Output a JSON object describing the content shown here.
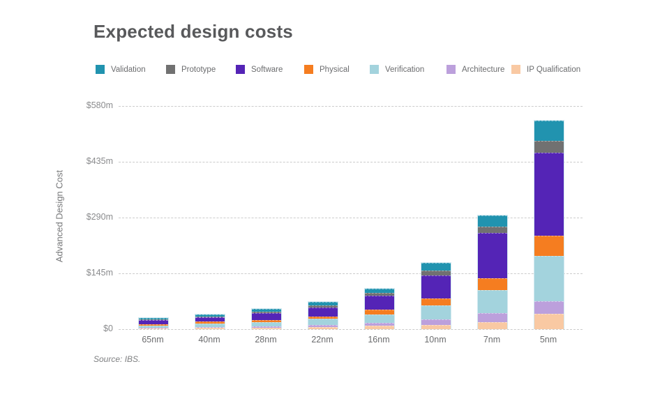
{
  "title": "Expected design costs",
  "source_note": "Source: IBS.",
  "y_axis": {
    "title": "Advanced Design Cost",
    "tick_labels": [
      "$580m",
      "$435m",
      "$290m",
      "$145m",
      "$0"
    ],
    "tick_values": [
      580,
      435,
      290,
      145,
      0
    ]
  },
  "legend": {
    "position": "top",
    "items": [
      {
        "label": "Validation",
        "color": "#2193af"
      },
      {
        "label": "Prototype",
        "color": "#717171"
      },
      {
        "label": "Software",
        "color": "#5424b6"
      },
      {
        "label": "Physical",
        "color": "#f57d20"
      },
      {
        "label": "Verification",
        "color": "#a3d3dd"
      },
      {
        "label": "Architecture",
        "color": "#bca0dc"
      },
      {
        "label": "IP Qualification",
        "color": "#f9c9a3"
      }
    ]
  },
  "chart_data": {
    "type": "bar",
    "stacked": true,
    "title": "Expected design costs",
    "ylabel": "Advanced Design Cost",
    "unit": "$m",
    "ylim": [
      0,
      580
    ],
    "yticks": [
      0,
      145,
      290,
      435,
      580
    ],
    "grid": "horizontal-dashed",
    "legend_position": "top",
    "categories": [
      "65nm",
      "40nm",
      "28nm",
      "22nm",
      "16nm",
      "10nm",
      "7nm",
      "5nm"
    ],
    "series": [
      {
        "name": "IP Qualification",
        "color": "#f9c9a3",
        "values": [
          2,
          3,
          3,
          6,
          10,
          11,
          18,
          40
        ]
      },
      {
        "name": "Architecture",
        "color": "#bca0dc",
        "values": [
          2,
          3,
          4,
          5,
          7,
          15,
          23,
          32
        ]
      },
      {
        "name": "Verification",
        "color": "#a3d3dd",
        "values": [
          6,
          9,
          12,
          16,
          22,
          35,
          60,
          118
        ]
      },
      {
        "name": "Physical",
        "color": "#f57d20",
        "values": [
          3,
          4,
          5,
          6,
          12,
          18,
          32,
          53
        ]
      },
      {
        "name": "Software",
        "color": "#5424b6",
        "values": [
          10,
          12,
          18,
          24,
          36,
          60,
          118,
          215
        ]
      },
      {
        "name": "Prototype",
        "color": "#717171",
        "values": [
          2,
          2,
          3,
          4,
          7,
          13,
          16,
          31
        ]
      },
      {
        "name": "Validation",
        "color": "#2193af",
        "values": [
          4,
          5,
          7,
          9,
          12,
          20,
          29,
          53
        ]
      }
    ],
    "approx_totals": [
      29,
      38,
      52,
      70,
      106,
      172,
      296,
      542
    ],
    "stacking_order_note": "series listed bottom-to-top of stack"
  }
}
